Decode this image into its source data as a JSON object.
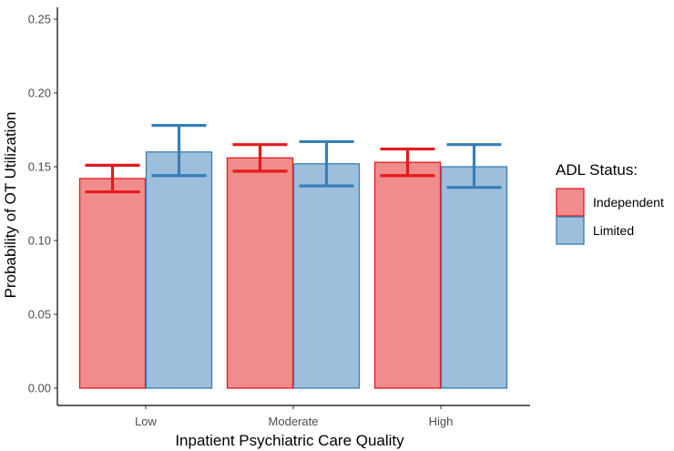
{
  "chart_data": {
    "type": "bar",
    "title": "",
    "xlabel": "Inpatient Psychiatric Care Quality",
    "ylabel": "Probability of OT Utilization",
    "categories": [
      "Low",
      "Moderate",
      "High"
    ],
    "ylim": [
      0,
      0.26
    ],
    "yticks": [
      "0.00",
      "0.05",
      "0.10",
      "0.15",
      "0.20",
      "0.25"
    ],
    "grid": false,
    "legend": {
      "title": "ADL Status:",
      "placement": "right"
    },
    "series": [
      {
        "name": "Independent",
        "fill": "#f08c8c",
        "stroke": "#e41a1c",
        "values": [
          0.142,
          0.156,
          0.153
        ],
        "error_low": [
          0.133,
          0.147,
          0.144
        ],
        "error_high": [
          0.151,
          0.165,
          0.162
        ]
      },
      {
        "name": "Limited",
        "fill": "#9ebfdc",
        "stroke": "#377eb8",
        "values": [
          0.16,
          0.152,
          0.15
        ],
        "error_low": [
          0.144,
          0.137,
          0.136
        ],
        "error_high": [
          0.178,
          0.167,
          0.165
        ]
      }
    ]
  }
}
